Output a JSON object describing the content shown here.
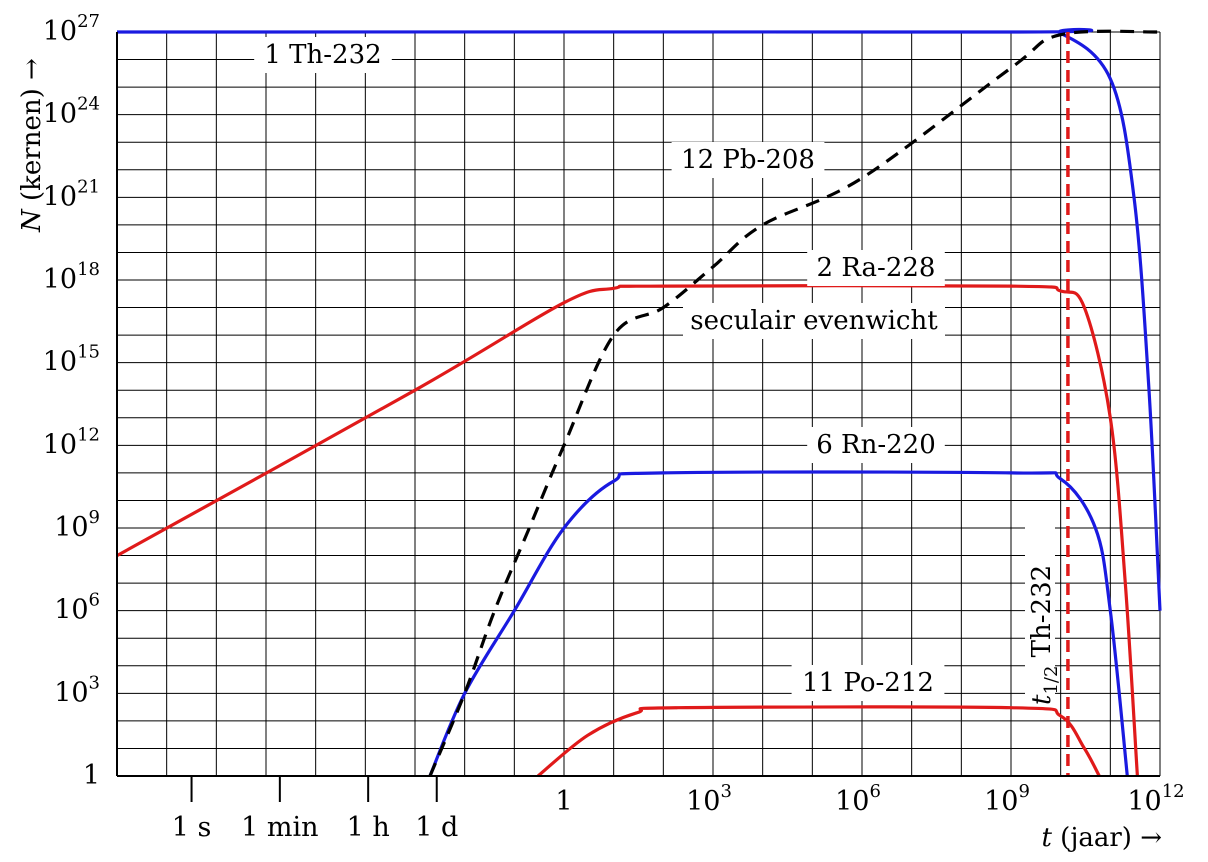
{
  "chart_data": {
    "type": "line",
    "x_scale": "log10",
    "y_scale": "log10",
    "x_unit": "jaar",
    "xlabel": {
      "var": "t",
      "unit": "(jaar)",
      "arrow": "→"
    },
    "ylabel": {
      "var": "N",
      "unit": "(kernen)",
      "arrow": "→"
    },
    "xlim": [
      1e-09,
      1000000000000.0
    ],
    "ylim": [
      1,
      1e+27
    ],
    "grid": true,
    "y_ticks": [
      {
        "value": 1,
        "base": "1",
        "exp": ""
      },
      {
        "value": 1000.0,
        "base": "10",
        "exp": "3"
      },
      {
        "value": 1000000.0,
        "base": "10",
        "exp": "6"
      },
      {
        "value": 1000000000.0,
        "base": "10",
        "exp": "9"
      },
      {
        "value": 1000000000000.0,
        "base": "10",
        "exp": "12"
      },
      {
        "value": 1000000000000000.0,
        "base": "10",
        "exp": "15"
      },
      {
        "value": 1e+18,
        "base": "10",
        "exp": "18"
      },
      {
        "value": 1e+21,
        "base": "10",
        "exp": "21"
      },
      {
        "value": 1e+24,
        "base": "10",
        "exp": "24"
      },
      {
        "value": 1e+27,
        "base": "10",
        "exp": "27"
      }
    ],
    "x_ticks": [
      {
        "value": 1,
        "base": "1",
        "exp": ""
      },
      {
        "value": 1000.0,
        "base": "10",
        "exp": "3"
      },
      {
        "value": 1000000.0,
        "base": "10",
        "exp": "6"
      },
      {
        "value": 1000000000.0,
        "base": "10",
        "exp": "9"
      },
      {
        "value": 1000000000000.0,
        "base": "10",
        "exp": "12"
      }
    ],
    "time_marks": [
      {
        "label": "1 s",
        "years": 3.17e-08
      },
      {
        "label": "1 min",
        "years": 1.9e-06
      },
      {
        "label": "1 h",
        "years": 0.000114
      },
      {
        "label": "1 d",
        "years": 0.00274
      }
    ],
    "series": [
      {
        "name": "1 Th-232",
        "color": "#1a1ae0",
        "dash": false,
        "points": [
          [
            1e-09,
            1e+27
          ],
          [
            1000000000.0,
            1e+27
          ],
          [
            10000000000.0,
            8.9e+26
          ],
          [
            100000000000.0,
            2e+25
          ],
          [
            300000000000.0,
            1e+21
          ],
          [
            600000000000.0,
            100000000000000.0
          ],
          [
            1000000000000.0,
            1000000.0
          ]
        ]
      },
      {
        "name": "2 Ra-228",
        "color": "#e01a1a",
        "dash": false,
        "points": [
          [
            1e-09,
            100000000.0
          ],
          [
            0.001,
            100000000000000.0
          ],
          [
            1,
            1.5e+17
          ],
          [
            10,
            5e+17
          ],
          [
            100,
            6e+17
          ],
          [
            1000000000.0,
            6e+17
          ],
          [
            10000000000.0,
            4e+17
          ],
          [
            30000000000.0,
            1e+17
          ],
          [
            100000000000.0,
            10000000000000.0
          ],
          [
            200000000000.0,
            10000000.0
          ],
          [
            350000000000.0,
            1
          ]
        ]
      },
      {
        "name": "6 Rn-220",
        "color": "#1a1ae0",
        "dash": false,
        "points": [
          [
            0.002,
            1
          ],
          [
            0.01,
            1000.0
          ],
          [
            0.1,
            1000000.0
          ],
          [
            1,
            1000000000.0
          ],
          [
            10,
            50000000000.0
          ],
          [
            100,
            100000000000.0
          ],
          [
            1000000000.0,
            100000000000.0
          ],
          [
            10000000000.0,
            60000000000.0
          ],
          [
            50000000000.0,
            1000000000.0
          ],
          [
            100000000000.0,
            1000000.0
          ],
          [
            220000000000.0,
            1
          ]
        ]
      },
      {
        "name": "11 Po-212",
        "color": "#e01a1a",
        "dash": false,
        "points": [
          [
            0.3,
            1
          ],
          [
            3,
            30
          ],
          [
            30,
            200
          ],
          [
            200,
            300
          ],
          [
            1000000000.0,
            300
          ],
          [
            10000000000.0,
            150
          ],
          [
            30000000000.0,
            10
          ],
          [
            60000000000.0,
            1
          ]
        ]
      },
      {
        "name": "12 Pb-208",
        "color": "#000000",
        "dash": true,
        "points": [
          [
            0.002,
            1
          ],
          [
            0.01,
            1000.0
          ],
          [
            0.04,
            1000000.0
          ],
          [
            0.2,
            1000000000.0
          ],
          [
            1,
            1000000000000.0
          ],
          [
            10,
            1e+16
          ],
          [
            100,
            1e+17
          ],
          [
            1000.0,
            3e+18
          ],
          [
            10000.0,
            1e+20
          ],
          [
            1000000.0,
            5e+21
          ],
          [
            1000000000.0,
            5e+25
          ],
          [
            10000000000.0,
            8e+26
          ],
          [
            1000000000000.0,
            1e+27
          ]
        ]
      }
    ],
    "half_life_marker": {
      "x": 14000000000.0,
      "label_main": "t",
      "label_sub": "1/2",
      "label_rest": "Th-232",
      "color": "#e01a1a"
    },
    "annotations": [
      {
        "text": "seculair evenwicht"
      }
    ]
  }
}
